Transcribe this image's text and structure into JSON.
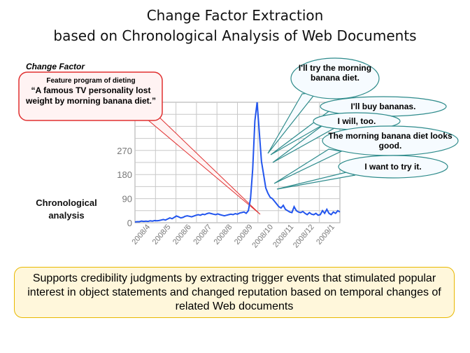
{
  "title_line1": "Change Factor Extraction",
  "title_line2": "based on Chronological Analysis of Web Documents",
  "change_factor_label": "Change Factor",
  "chronological_label_line1": "Chronological",
  "chronological_label_line2": "analysis",
  "red_callout": {
    "sub": "Feature program of dieting",
    "quote": "“A famous TV personality lost weight by morning banana diet.”",
    "border_color": "#e03030",
    "fill_color": "#fff3f3"
  },
  "bubbles": [
    {
      "label": "I'll try the morning banana diet."
    },
    {
      "label": "I'll buy bananas."
    },
    {
      "label": "I will, too."
    },
    {
      "label": "The morning banana diet looks good."
    },
    {
      "label": "I want to try it."
    }
  ],
  "bubble_colors": {
    "border": "#2e8b8b",
    "fill": "#f6fbff"
  },
  "summary": "Supports credibility judgments by extracting trigger events that stimulated popular interest in object statements and changed reputation based on temporal changes of related Web documents",
  "summary_colors": {
    "border": "#e8b800",
    "fill": "#fff7db"
  },
  "chart_data": {
    "type": "line",
    "series_color": "#2255ee",
    "x_labels": [
      "2008/4",
      "2008/5",
      "2008/6",
      "2008/7",
      "2008/8",
      "2008/9",
      "2008/10",
      "2008/11",
      "2008/12",
      "2009/1"
    ],
    "y_ticks": [
      0,
      90,
      180,
      270
    ],
    "ylim": [
      0,
      450
    ],
    "grid": true,
    "values": [
      3,
      4,
      4,
      6,
      5,
      6,
      5,
      7,
      6,
      8,
      7,
      8,
      10,
      12,
      10,
      14,
      18,
      15,
      20,
      25,
      22,
      18,
      20,
      24,
      26,
      24,
      22,
      25,
      28,
      30,
      28,
      32,
      30,
      34,
      36,
      34,
      32,
      30,
      33,
      30,
      28,
      26,
      28,
      30,
      32,
      30,
      34,
      32,
      36,
      38,
      40,
      35,
      45,
      90,
      200,
      380,
      450,
      340,
      230,
      180,
      130,
      110,
      95,
      90,
      80,
      70,
      60,
      55,
      65,
      50,
      45,
      40,
      38,
      60,
      45,
      40,
      38,
      42,
      35,
      30,
      38,
      32,
      30,
      35,
      28,
      30,
      45,
      35,
      50,
      35,
      30,
      40,
      35,
      45,
      40
    ]
  }
}
